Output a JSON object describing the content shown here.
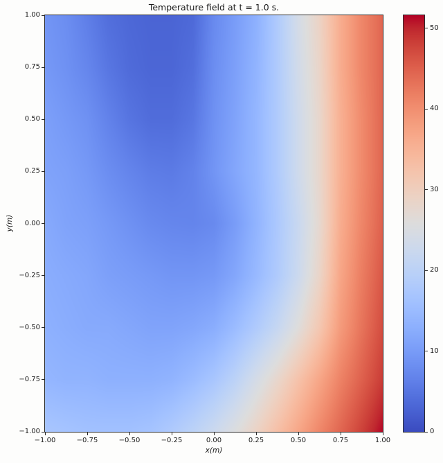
{
  "figure": {
    "background": "#fdfdfc"
  },
  "chart_data": {
    "type": "heatmap",
    "title": "Temperature field at t = 1.0 s.",
    "xlabel": "x(m)",
    "ylabel": "y(m)",
    "colormap": "coolwarm",
    "grid": false,
    "extent": {
      "xmin": -1.0,
      "xmax": 1.0,
      "ymin": -1.0,
      "ymax": 1.0
    },
    "x": [
      -1.0,
      -0.875,
      -0.75,
      -0.625,
      -0.5,
      -0.375,
      -0.25,
      -0.125,
      0.0,
      0.125,
      0.25,
      0.375,
      0.5,
      0.625,
      0.75,
      0.875,
      1.0
    ],
    "y": [
      1.0,
      0.75,
      0.5,
      0.25,
      0.0,
      -0.25,
      -0.5,
      -0.75,
      -1.0
    ],
    "values": [
      [
        9.0,
        8.0,
        6.0,
        4.0,
        3.2,
        2.8,
        2.8,
        3.4,
        7.5,
        10.0,
        13.0,
        18.0,
        24.0,
        29.0,
        36.0,
        41.0,
        44.5
      ],
      [
        9.5,
        8.5,
        7.0,
        5.0,
        3.6,
        3.0,
        3.0,
        4.0,
        8.0,
        10.5,
        13.5,
        18.0,
        23.5,
        28.5,
        36.0,
        41.0,
        44.5
      ],
      [
        10.5,
        9.5,
        8.5,
        6.5,
        4.8,
        3.8,
        3.8,
        5.0,
        8.5,
        11.0,
        14.0,
        18.0,
        23.0,
        28.0,
        35.5,
        40.5,
        44.5
      ],
      [
        11.0,
        10.5,
        9.5,
        8.0,
        6.8,
        5.8,
        5.5,
        6.5,
        9.0,
        11.5,
        14.0,
        18.0,
        23.0,
        28.0,
        35.5,
        40.5,
        44.5
      ],
      [
        12.0,
        11.0,
        10.5,
        9.5,
        8.5,
        7.5,
        7.0,
        6.8,
        7.5,
        10.0,
        13.5,
        17.5,
        22.0,
        27.5,
        36.0,
        41.0,
        45.0
      ],
      [
        12.5,
        12.0,
        11.5,
        10.5,
        10.0,
        9.5,
        9.0,
        9.0,
        9.5,
        11.5,
        14.5,
        18.0,
        22.5,
        28.5,
        37.0,
        42.0,
        46.0
      ],
      [
        13.0,
        12.5,
        12.0,
        12.0,
        11.5,
        11.0,
        11.0,
        11.5,
        12.5,
        15.0,
        18.0,
        21.5,
        26.0,
        31.5,
        38.5,
        43.0,
        47.0
      ],
      [
        14.0,
        13.5,
        13.5,
        13.0,
        13.0,
        13.0,
        13.5,
        15.0,
        17.0,
        20.0,
        24.0,
        28.0,
        32.5,
        37.0,
        41.5,
        45.0,
        48.5
      ],
      [
        17.0,
        16.5,
        16.0,
        16.0,
        16.0,
        16.5,
        18.0,
        20.0,
        22.5,
        25.5,
        29.0,
        33.0,
        37.0,
        41.0,
        44.5,
        48.0,
        51.5
      ]
    ],
    "x_ticks": [
      {
        "label": "−1.00",
        "value": -1.0
      },
      {
        "label": "−0.75",
        "value": -0.75
      },
      {
        "label": "−0.50",
        "value": -0.5
      },
      {
        "label": "−0.25",
        "value": -0.25
      },
      {
        "label": "0.00",
        "value": 0.0
      },
      {
        "label": "0.25",
        "value": 0.25
      },
      {
        "label": "0.50",
        "value": 0.5
      },
      {
        "label": "0.75",
        "value": 0.75
      },
      {
        "label": "1.00",
        "value": 1.0
      }
    ],
    "y_ticks": [
      {
        "label": "1.00",
        "value": 1.0
      },
      {
        "label": "0.75",
        "value": 0.75
      },
      {
        "label": "0.50",
        "value": 0.5
      },
      {
        "label": "0.25",
        "value": 0.25
      },
      {
        "label": "0.00",
        "value": 0.0
      },
      {
        "label": "−0.25",
        "value": -0.25
      },
      {
        "label": "−0.50",
        "value": -0.5
      },
      {
        "label": "−0.75",
        "value": -0.75
      },
      {
        "label": "−1.00",
        "value": -1.0
      }
    ],
    "colorbar": {
      "vmin": 0,
      "vmax": 51.6,
      "ticks": [
        {
          "label": "0",
          "value": 0
        },
        {
          "label": "10",
          "value": 10
        },
        {
          "label": "20",
          "value": 20
        },
        {
          "label": "30",
          "value": 30
        },
        {
          "label": "40",
          "value": 40
        },
        {
          "label": "50",
          "value": 50
        }
      ]
    }
  }
}
